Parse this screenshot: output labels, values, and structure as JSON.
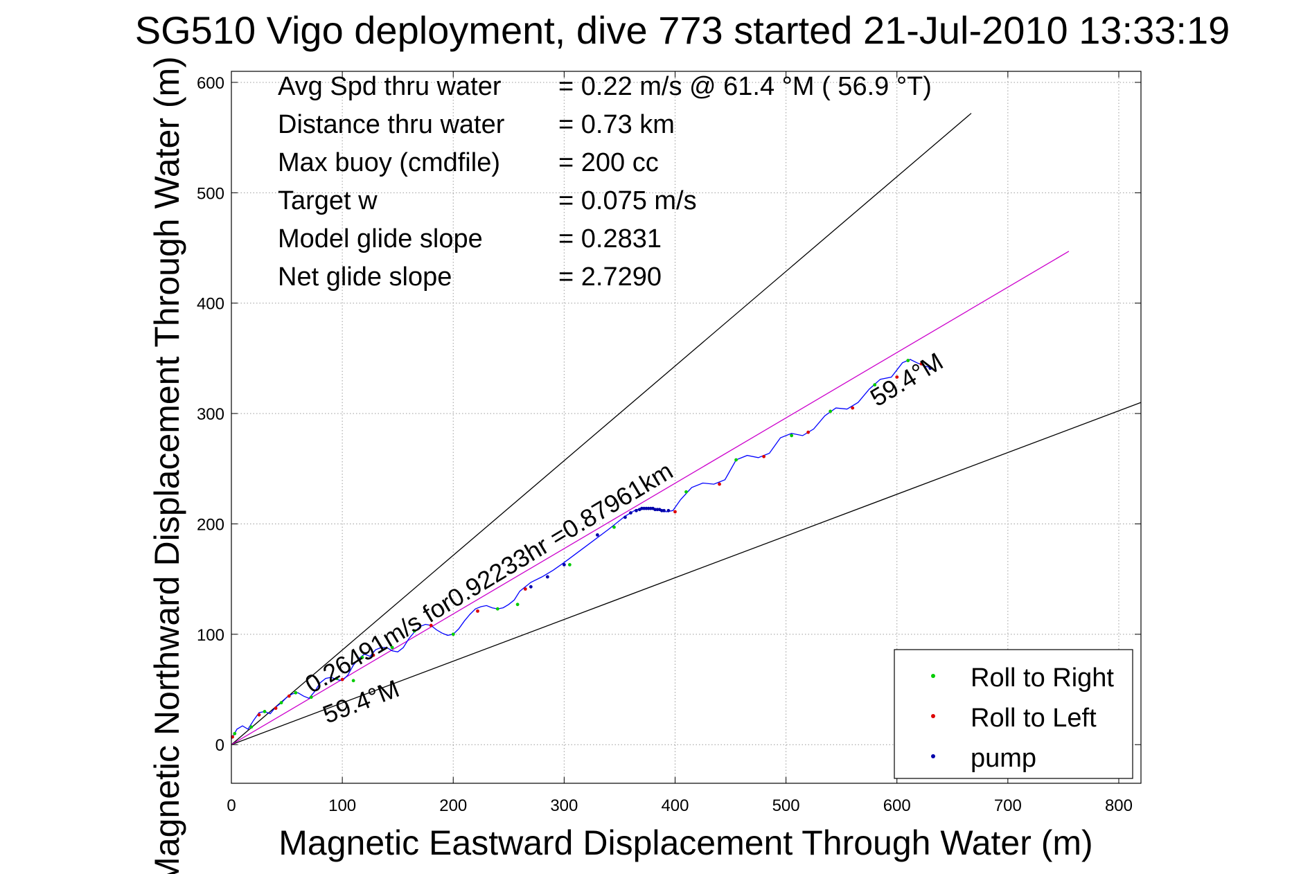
{
  "chart_data": {
    "type": "scatter",
    "title": "SG510 Vigo deployment, dive 773 started 21-Jul-2010 13:33:19",
    "xlabel": "Magnetic Eastward Displacement Through Water (m)",
    "ylabel": "Magnetic Northward Displacement Through Water (m)",
    "xlim": [
      0,
      820
    ],
    "ylim": [
      -35,
      610
    ],
    "xticks": [
      0,
      100,
      200,
      300,
      400,
      500,
      600,
      700,
      800
    ],
    "yticks": [
      0,
      100,
      200,
      300,
      400,
      500,
      600
    ],
    "grid": true,
    "legend_position": "bottom-right",
    "stats": [
      {
        "label": "Avg Spd thru water",
        "value": "=  0.22 m/s @  61.4 °M ( 56.9 °T)"
      },
      {
        "label": "Distance thru water",
        "value": "=  0.73 km"
      },
      {
        "label": "Max buoy (cmdfile)",
        "value": "= 200 cc"
      },
      {
        "label": "Target w",
        "value": "= 0.075 m/s"
      },
      {
        "label": "Model glide slope",
        "value": "= 0.2831"
      },
      {
        "label": "Net glide slope",
        "value": "= 2.7290"
      }
    ],
    "annotations": {
      "speed_text": "0.26491m/s for0.92233hr =0.87961km",
      "heading_low": "59.4°M",
      "heading_end": "59.4°M"
    },
    "reference_lines": [
      {
        "name": "upper-bound",
        "x": [
          0,
          667
        ],
        "y": [
          0,
          572
        ],
        "color": "#000000"
      },
      {
        "name": "lower-bound",
        "x": [
          0,
          820
        ],
        "y": [
          0,
          310
        ],
        "color": "#000000"
      },
      {
        "name": "mean-heading",
        "x": [
          0,
          755
        ],
        "y": [
          0,
          447
        ],
        "color": "#cc00cc"
      }
    ],
    "track": {
      "color": "#0000ff",
      "x": [
        0,
        5,
        10,
        15,
        20,
        25,
        30,
        35,
        40,
        45,
        50,
        55,
        60,
        65,
        70,
        75,
        80,
        85,
        90,
        95,
        100,
        105,
        110,
        115,
        120,
        125,
        130,
        135,
        140,
        145,
        150,
        155,
        160,
        165,
        170,
        175,
        180,
        185,
        190,
        195,
        200,
        205,
        210,
        215,
        220,
        225,
        230,
        235,
        240,
        245,
        250,
        255,
        260,
        265,
        270,
        280,
        290,
        300,
        320,
        340,
        355,
        365,
        375,
        385,
        392,
        398,
        405,
        415,
        425,
        435,
        445,
        455,
        465,
        475,
        485,
        495,
        505,
        515,
        525,
        535,
        545,
        555,
        565,
        575,
        585,
        595,
        605,
        612,
        618,
        625,
        632
      ],
      "y": [
        5,
        14,
        17,
        14,
        22,
        29,
        30,
        28,
        34,
        38,
        43,
        46,
        47,
        44,
        42,
        48,
        56,
        60,
        61,
        59,
        58,
        63,
        72,
        78,
        82,
        80,
        86,
        88,
        88,
        85,
        84,
        88,
        96,
        102,
        107,
        109,
        108,
        104,
        101,
        99,
        100,
        105,
        112,
        118,
        123,
        125,
        126,
        124,
        123,
        124,
        127,
        131,
        139,
        143,
        147,
        152,
        158,
        165,
        180,
        195,
        207,
        213,
        214,
        213,
        211,
        212,
        222,
        233,
        237,
        236,
        240,
        258,
        262,
        260,
        264,
        278,
        282,
        280,
        286,
        298,
        305,
        304,
        310,
        322,
        331,
        333,
        346,
        349,
        346,
        343,
        341
      ]
    },
    "series": [
      {
        "name": "Roll to Right",
        "color": "#00cc00",
        "marker": "dot",
        "x": [
          3,
          18,
          30,
          45,
          58,
          72,
          95,
          110,
          118,
          145,
          165,
          200,
          240,
          258,
          305,
          345,
          410,
          455,
          505,
          540,
          580,
          610
        ],
        "y": [
          10,
          16,
          30,
          38,
          47,
          43,
          60,
          58,
          79,
          88,
          103,
          100,
          123,
          127,
          163,
          197,
          229,
          258,
          280,
          302,
          326,
          348
        ]
      },
      {
        "name": "Roll to Left",
        "color": "#dd0000",
        "marker": "dot",
        "x": [
          1,
          25,
          40,
          52,
          100,
          128,
          180,
          222,
          265,
          400,
          440,
          480,
          520,
          560,
          600,
          622
        ],
        "y": [
          7,
          27,
          33,
          44,
          59,
          81,
          108,
          121,
          141,
          211,
          236,
          261,
          283,
          305,
          333,
          345
        ]
      },
      {
        "name": "pump",
        "color": "#0000aa",
        "marker": "dot",
        "x": [
          270,
          285,
          300,
          330,
          355,
          360,
          365,
          368,
          370,
          372,
          374,
          376,
          378,
          380,
          382,
          384,
          386,
          388,
          390,
          394,
          630
        ],
        "y": [
          143,
          152,
          163,
          190,
          206,
          210,
          212,
          213,
          214,
          214,
          214,
          214,
          214,
          214,
          213,
          213,
          213,
          212,
          212,
          212,
          341
        ]
      }
    ]
  }
}
